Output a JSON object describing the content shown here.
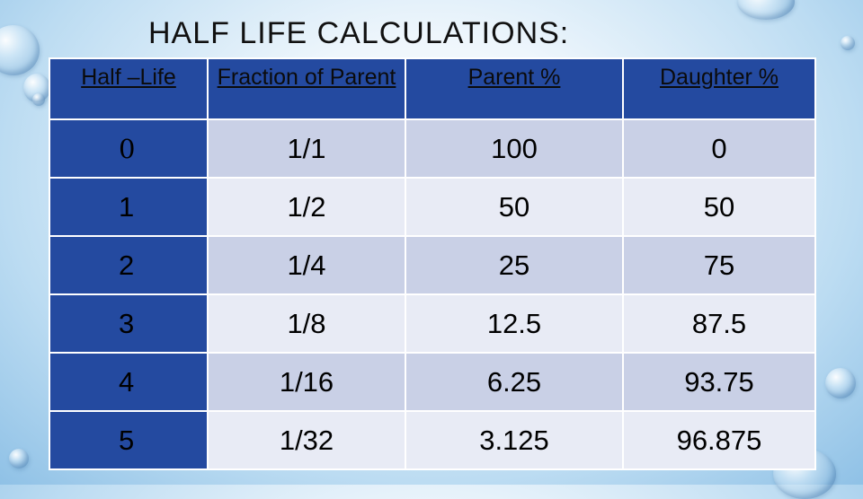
{
  "title": "HALF LIFE CALCULATIONS:",
  "headers": [
    "Half –Life",
    "Fraction of Parent",
    "Parent %",
    "Daughter %"
  ],
  "rows": [
    [
      "0",
      "1/1",
      "100",
      "0"
    ],
    [
      "1",
      "1/2",
      "50",
      "50"
    ],
    [
      "2",
      "1/4",
      "25",
      "75"
    ],
    [
      "3",
      "1/8",
      "12.5",
      "87.5"
    ],
    [
      "4",
      "1/16",
      "6.25",
      "93.75"
    ],
    [
      "5",
      "1/32",
      "3.125",
      "96.875"
    ]
  ],
  "colors": {
    "header_bg": "#244aa0",
    "row_light": "#e8ebf5",
    "row_dark": "#c9d0e6"
  }
}
